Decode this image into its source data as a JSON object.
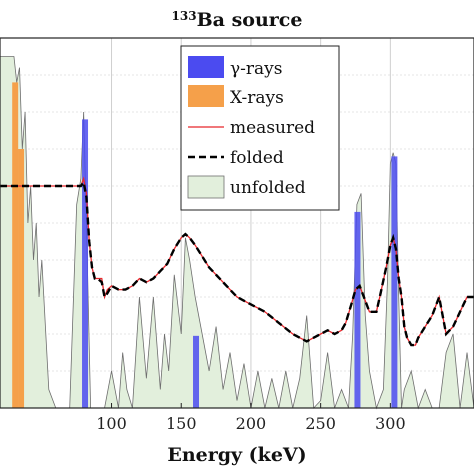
{
  "chart_data": {
    "type": "line",
    "title_sup": "133",
    "title": "Ba source",
    "xlabel": "Energy (keV)",
    "ylabel": "",
    "xlim": [
      20,
      360
    ],
    "ylim": [
      0,
      1
    ],
    "xticks": [
      100,
      150,
      200,
      250,
      300
    ],
    "grid": true,
    "legend": {
      "position": "top-right",
      "entries": [
        {
          "label": "γ-rays",
          "type": "bar",
          "color": "#4b4bf0"
        },
        {
          "label": "X-rays",
          "type": "bar",
          "color": "#f5a04a"
        },
        {
          "label": "measured",
          "type": "line",
          "color": "#e8262b"
        },
        {
          "label": "folded",
          "type": "dashed",
          "color": "#000000"
        },
        {
          "label": "unfolded",
          "type": "area",
          "color": "#e2efdc"
        }
      ]
    },
    "gamma_lines": [
      {
        "x": 80.99,
        "value": 0.78
      },
      {
        "x": 160.6,
        "value": 0.195
      },
      {
        "x": 276.4,
        "value": 0.53
      },
      {
        "x": 302.9,
        "value": 0.68
      }
    ],
    "xray_lines": [
      {
        "x": 30.9,
        "value": 0.88
      },
      {
        "x": 35.1,
        "value": 0.7
      }
    ],
    "measured": {
      "x": [
        20,
        25,
        30,
        35,
        40,
        45,
        50,
        55,
        60,
        65,
        70,
        75,
        78,
        80,
        82,
        84,
        86,
        88,
        90,
        93,
        95,
        97,
        100,
        105,
        110,
        115,
        120,
        125,
        130,
        135,
        140,
        145,
        150,
        153,
        156,
        160,
        165,
        170,
        180,
        190,
        200,
        210,
        220,
        230,
        235,
        240,
        250,
        255,
        260,
        265,
        268,
        272,
        275,
        278,
        281,
        285,
        290,
        293,
        297,
        300,
        302,
        304,
        306,
        308,
        310,
        312,
        315,
        318,
        320,
        325,
        330,
        335,
        340,
        345,
        350,
        355,
        360
      ],
      "y": [
        0.6,
        0.6,
        0.6,
        0.6,
        0.6,
        0.6,
        0.6,
        0.6,
        0.6,
        0.6,
        0.6,
        0.6,
        0.6,
        0.62,
        0.58,
        0.45,
        0.38,
        0.35,
        0.35,
        0.35,
        0.3,
        0.32,
        0.33,
        0.32,
        0.32,
        0.33,
        0.35,
        0.34,
        0.35,
        0.37,
        0.39,
        0.43,
        0.46,
        0.47,
        0.46,
        0.44,
        0.41,
        0.38,
        0.34,
        0.3,
        0.28,
        0.26,
        0.23,
        0.2,
        0.19,
        0.18,
        0.2,
        0.21,
        0.2,
        0.21,
        0.23,
        0.28,
        0.32,
        0.33,
        0.3,
        0.26,
        0.26,
        0.31,
        0.38,
        0.44,
        0.46,
        0.43,
        0.35,
        0.3,
        0.22,
        0.19,
        0.17,
        0.17,
        0.19,
        0.22,
        0.25,
        0.3,
        0.2,
        0.22,
        0.26,
        0.3,
        0.3
      ]
    },
    "folded": {
      "x": [
        20,
        25,
        30,
        35,
        40,
        45,
        50,
        55,
        60,
        65,
        70,
        75,
        78,
        80,
        82,
        84,
        86,
        88,
        90,
        93,
        95,
        97,
        100,
        105,
        110,
        115,
        120,
        125,
        130,
        135,
        140,
        145,
        150,
        153,
        156,
        160,
        165,
        170,
        180,
        190,
        200,
        210,
        220,
        230,
        235,
        240,
        250,
        255,
        260,
        265,
        268,
        272,
        275,
        278,
        281,
        285,
        290,
        293,
        297,
        300,
        302,
        304,
        306,
        308,
        310,
        312,
        315,
        318,
        320,
        325,
        330,
        335,
        340,
        345,
        350,
        355,
        360
      ],
      "y": [
        0.6,
        0.6,
        0.6,
        0.6,
        0.6,
        0.6,
        0.6,
        0.6,
        0.6,
        0.6,
        0.6,
        0.6,
        0.6,
        0.61,
        0.57,
        0.45,
        0.38,
        0.35,
        0.35,
        0.34,
        0.3,
        0.31,
        0.33,
        0.32,
        0.32,
        0.33,
        0.35,
        0.34,
        0.35,
        0.37,
        0.39,
        0.43,
        0.46,
        0.47,
        0.46,
        0.44,
        0.41,
        0.38,
        0.34,
        0.3,
        0.28,
        0.26,
        0.23,
        0.2,
        0.19,
        0.18,
        0.2,
        0.21,
        0.2,
        0.21,
        0.23,
        0.28,
        0.32,
        0.33,
        0.3,
        0.26,
        0.26,
        0.31,
        0.38,
        0.44,
        0.46,
        0.43,
        0.35,
        0.3,
        0.22,
        0.19,
        0.17,
        0.17,
        0.19,
        0.22,
        0.25,
        0.3,
        0.2,
        0.22,
        0.26,
        0.3,
        0.3
      ]
    },
    "unfolded": {
      "x": [
        20,
        30,
        32,
        34,
        36,
        38,
        40,
        42,
        44,
        46,
        48,
        50,
        55,
        60,
        65,
        70,
        75,
        78,
        80,
        82,
        85,
        90,
        95,
        100,
        105,
        108,
        111,
        115,
        120,
        125,
        130,
        135,
        138,
        141,
        145,
        150,
        153,
        156,
        160,
        165,
        170,
        175,
        180,
        185,
        190,
        195,
        200,
        205,
        210,
        215,
        220,
        225,
        230,
        235,
        240,
        245,
        250,
        255,
        260,
        265,
        270,
        273,
        276,
        279,
        282,
        285,
        290,
        295,
        298,
        300,
        302,
        304,
        306,
        308,
        310,
        315,
        320,
        325,
        330,
        335,
        340,
        345,
        350,
        355,
        360
      ],
      "y": [
        0.95,
        0.95,
        0.88,
        0.92,
        0.7,
        0.8,
        0.5,
        0.6,
        0.4,
        0.5,
        0.3,
        0.4,
        0.05,
        0.0,
        0.0,
        0.0,
        0.55,
        0.62,
        0.8,
        0.5,
        0.0,
        0.0,
        0.0,
        0.1,
        0.0,
        0.15,
        0.05,
        0.0,
        0.3,
        0.08,
        0.3,
        0.05,
        0.2,
        0.1,
        0.36,
        0.2,
        0.46,
        0.4,
        0.3,
        0.2,
        0.1,
        0.22,
        0.05,
        0.15,
        0.02,
        0.12,
        0.0,
        0.1,
        0.0,
        0.08,
        0.0,
        0.1,
        0.0,
        0.08,
        0.25,
        0.0,
        0.02,
        0.15,
        0.0,
        0.05,
        0.0,
        0.2,
        0.55,
        0.58,
        0.25,
        0.1,
        0.0,
        0.05,
        0.35,
        0.66,
        0.69,
        0.66,
        0.3,
        0.0,
        0.05,
        0.1,
        0.0,
        0.05,
        0.0,
        0.0,
        0.15,
        0.2,
        0.0,
        0.15,
        0.0
      ]
    }
  }
}
